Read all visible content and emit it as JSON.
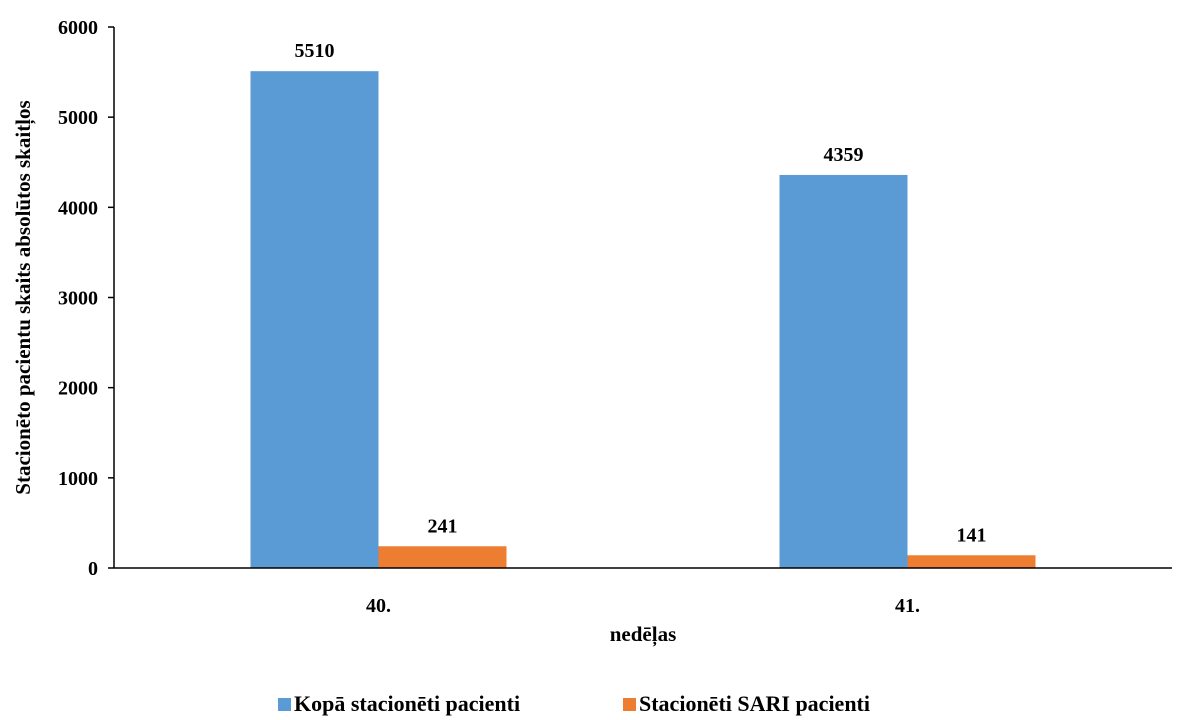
{
  "chart_data": {
    "type": "bar",
    "categories": [
      "40.",
      "41."
    ],
    "series": [
      {
        "name": "Kopā stacionēti pacienti",
        "values": [
          5510,
          4359
        ],
        "color": "#5B9BD5"
      },
      {
        "name": "Stacionēti SARI pacienti",
        "values": [
          241,
          141
        ],
        "color": "#ED7D31"
      }
    ],
    "data_labels": [
      [
        "5510",
        "4359"
      ],
      [
        "241",
        "141"
      ]
    ],
    "xlabel": "nedēļas",
    "ylabel": "Stacionēto pacientu skaits absolūtos skaitļos",
    "ylim": [
      0,
      6000
    ],
    "yticks": [
      0,
      1000,
      2000,
      3000,
      4000,
      5000,
      6000
    ],
    "grid": false,
    "legend_position": "bottom"
  }
}
